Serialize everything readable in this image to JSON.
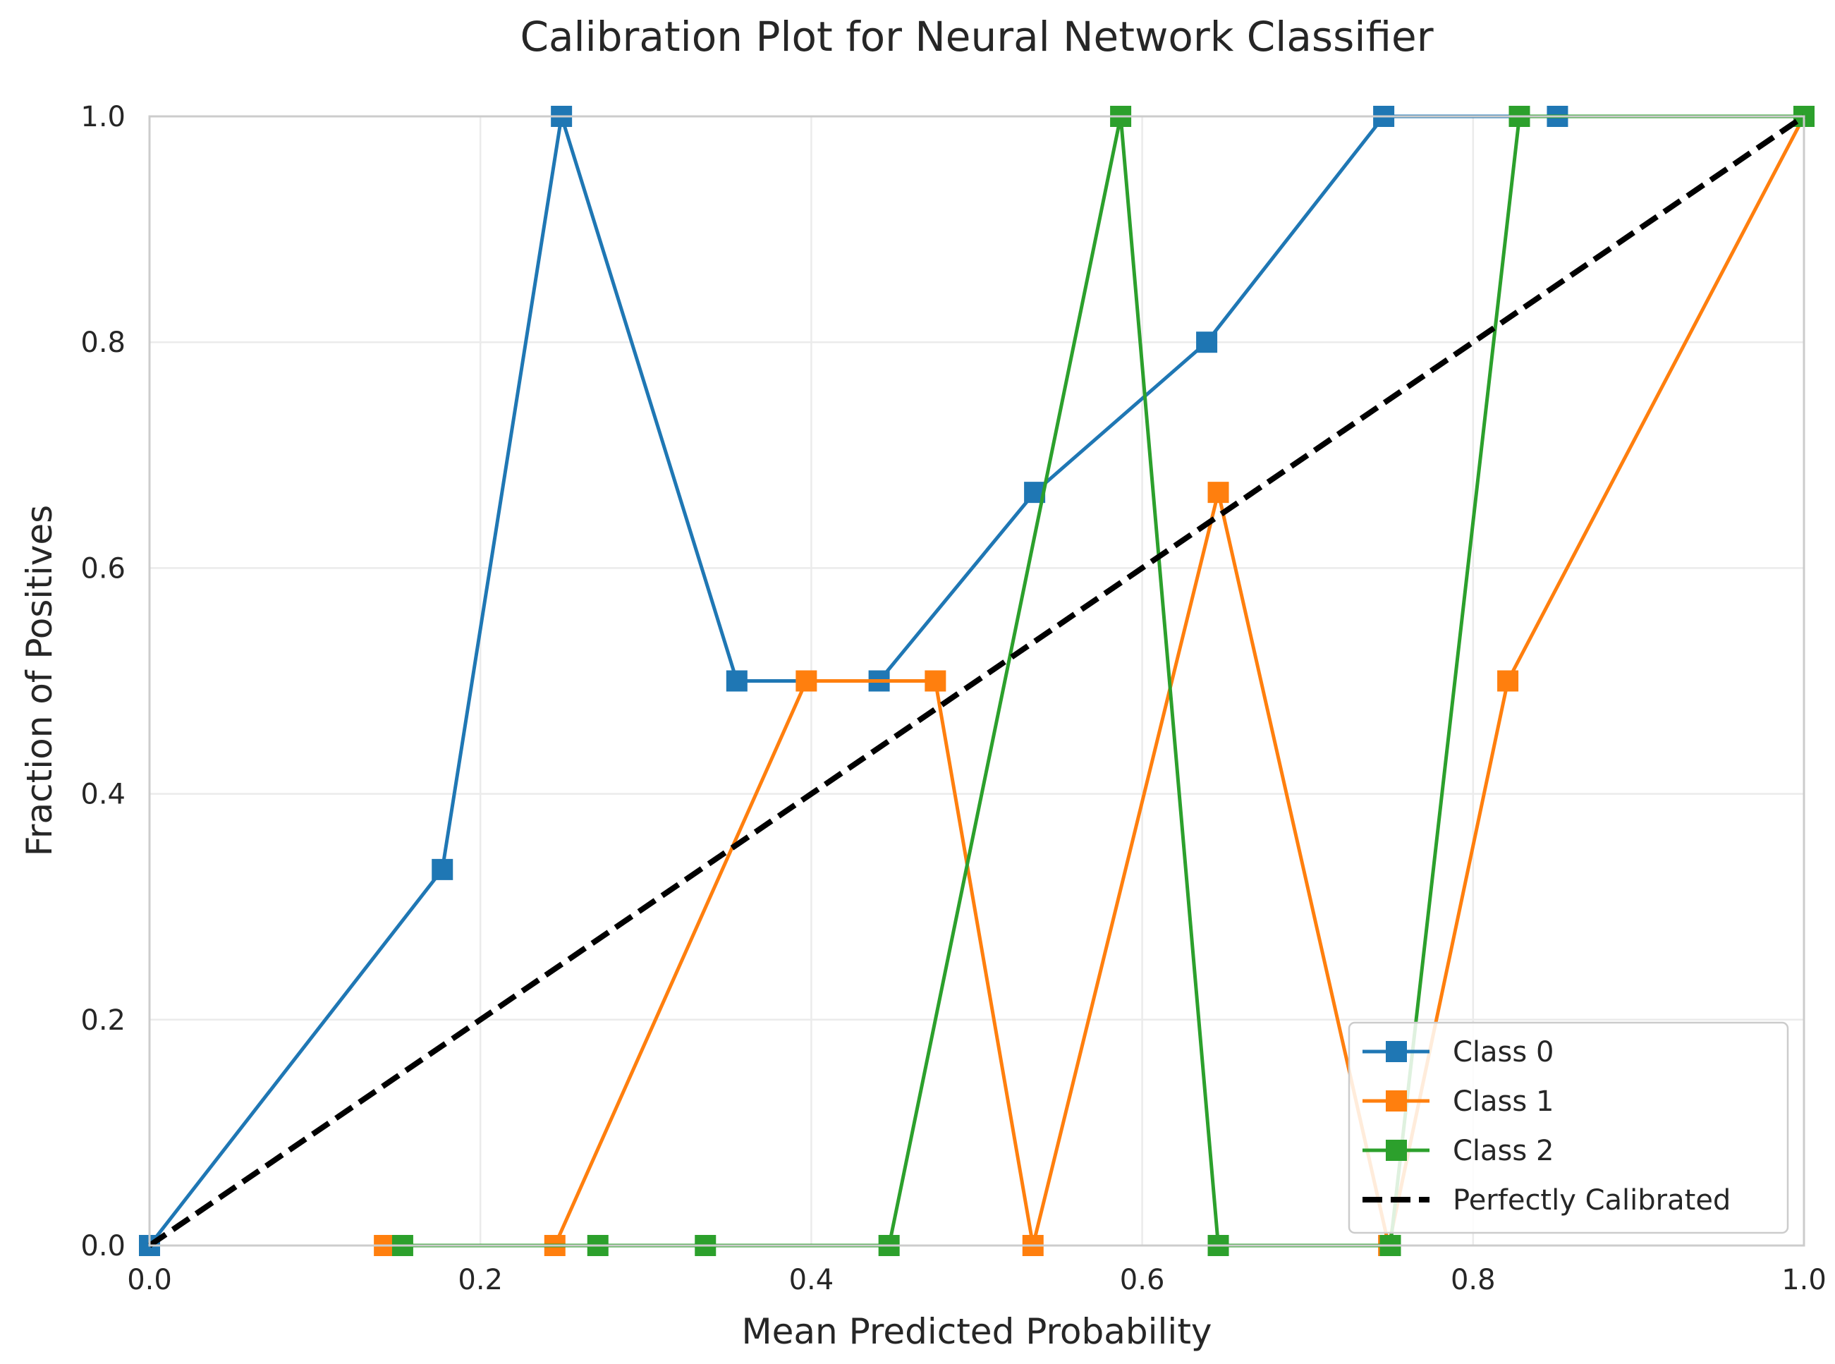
{
  "chart_data": {
    "type": "line",
    "title": "Calibration Plot for Neural Network Classifier",
    "xlabel": "Mean Predicted Probability",
    "ylabel": "Fraction of Positives",
    "xlim": [
      0,
      1
    ],
    "ylim": [
      0,
      1
    ],
    "xticks": [
      "0.0",
      "0.2",
      "0.4",
      "0.6",
      "0.8",
      "1.0"
    ],
    "yticks": [
      "0.0",
      "0.2",
      "0.4",
      "0.6",
      "0.8",
      "1.0"
    ],
    "grid": true,
    "legend_position": "lower-right",
    "series": [
      {
        "name": "Class 0",
        "color": "#1f77b4",
        "marker": "square",
        "x": [
          0.0,
          0.177,
          0.249,
          0.355,
          0.441,
          0.535,
          0.639,
          0.746,
          0.851,
          1.0
        ],
        "y": [
          0.0,
          0.333,
          1.0,
          0.5,
          0.5,
          0.667,
          0.8,
          1.0,
          1.0,
          1.0
        ]
      },
      {
        "name": "Class 1",
        "color": "#ff7f0e",
        "marker": "square",
        "x": [
          0.142,
          0.245,
          0.397,
          0.475,
          0.534,
          0.646,
          0.749,
          0.821,
          1.0
        ],
        "y": [
          0.0,
          0.0,
          0.5,
          0.5,
          0.0,
          0.667,
          0.0,
          0.5,
          1.0
        ]
      },
      {
        "name": "Class 2",
        "color": "#2ca02c",
        "marker": "square",
        "x": [
          0.153,
          0.271,
          0.336,
          0.447,
          0.587,
          0.646,
          0.75,
          0.828,
          1.0
        ],
        "y": [
          0.0,
          0.0,
          0.0,
          0.0,
          1.0,
          0.0,
          0.0,
          1.0,
          1.0
        ]
      },
      {
        "name": "Perfectly Calibrated",
        "color": "#000000",
        "marker": "none",
        "dashed": true,
        "x": [
          0.0,
          1.0
        ],
        "y": [
          0.0,
          1.0
        ]
      }
    ]
  }
}
